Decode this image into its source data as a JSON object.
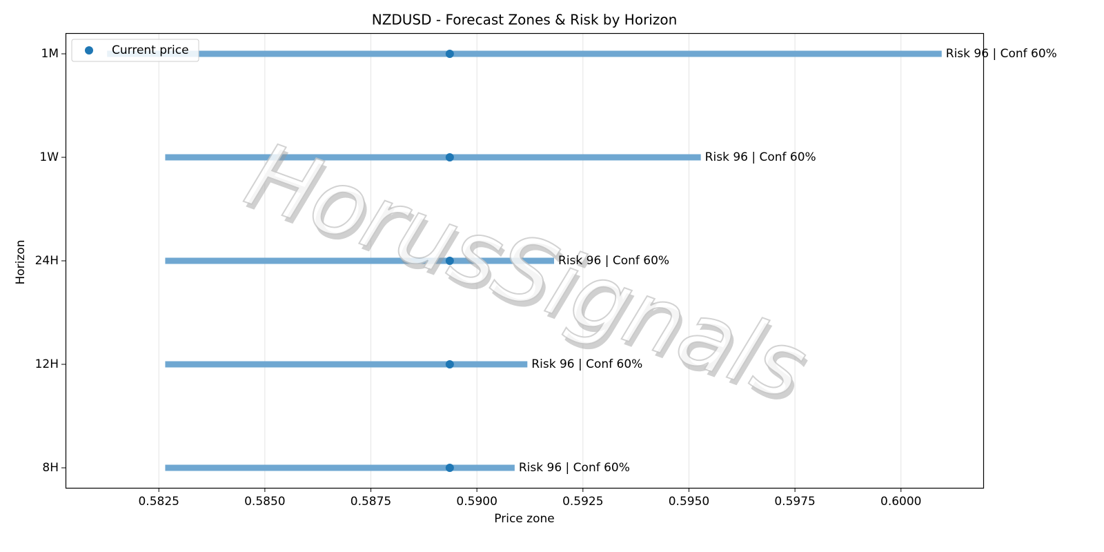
{
  "chart_data": {
    "type": "range",
    "title": "NZDUSD - Forecast Zones & Risk by Horizon",
    "x_label": "Price zone",
    "y_label": "Horizon",
    "watermark": "HorusSignals",
    "categories": [
      "1M",
      "1W",
      "24H",
      "12H",
      "8H"
    ],
    "zones": {
      "color": "#6fa7d1",
      "low": [
        0.58128,
        0.58265,
        0.58265,
        0.58265,
        0.58265
      ],
      "high": [
        0.60096,
        0.59528,
        0.59182,
        0.59119,
        0.59089
      ]
    },
    "series": [
      {
        "name": "Current price",
        "color": "#1f77b4",
        "values": [
          0.58936,
          0.58936,
          0.58936,
          0.58936,
          0.58936
        ]
      }
    ],
    "annotations": [
      "Risk 96 | Conf 60%",
      "Risk 96 | Conf 60%",
      "Risk 96 | Conf 60%",
      "Risk 96 | Conf 60%",
      "Risk 96 | Conf 60%"
    ],
    "xlim": [
      0.5803,
      0.60194
    ],
    "xticks": [
      0.5825,
      {
        "value": 0.585,
        "label": "0.5850"
      },
      0.5875,
      {
        "value": 0.59,
        "label": "0.5900"
      },
      0.5925,
      {
        "value": 0.595,
        "label": "0.5950"
      },
      0.5975,
      {
        "value": 0.6,
        "label": "0.6000"
      }
    ],
    "grid": true,
    "legend": "upper left"
  }
}
